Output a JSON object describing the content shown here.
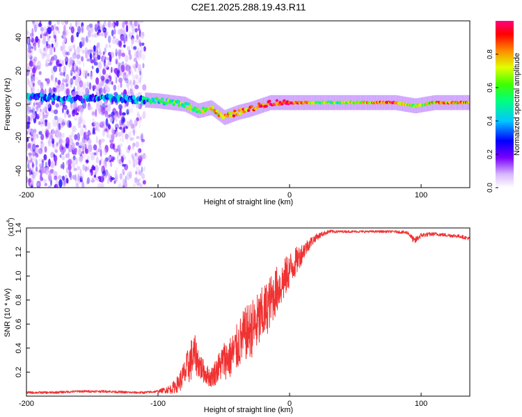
{
  "figure": {
    "title": "C2E1.2025.288.19.43.R11"
  },
  "colors": {
    "line": "#f03232",
    "axis": "#000000",
    "spectrum_base": "#4b00e6"
  },
  "chart_data": [
    {
      "type": "heatmap",
      "name": "spectrogram",
      "xlabel": "Height of straight line (km)",
      "ylabel": "Frequency (Hz)",
      "xlim": [
        -200,
        137
      ],
      "ylim": [
        -50,
        50
      ],
      "xticks": [
        -200,
        -100,
        0,
        100
      ],
      "yticks": [
        -40,
        -20,
        0,
        20,
        40
      ],
      "colorbar": {
        "label": "Normalized spectral amplitude",
        "range": [
          0,
          1
        ],
        "ticks": [
          0.0,
          0.2,
          0.4,
          0.6,
          0.8
        ],
        "tick_labels": [
          "0.0",
          "0.2",
          "0.4",
          "0.6",
          "0.8"
        ]
      },
      "ridge": [
        {
          "x": -185,
          "f": 4,
          "amp": 0.3
        },
        {
          "x": -160,
          "f": 3,
          "amp": 0.3
        },
        {
          "x": -140,
          "f": 4,
          "amp": 0.35
        },
        {
          "x": -120,
          "f": 3,
          "amp": 0.35
        },
        {
          "x": -100,
          "f": 2,
          "amp": 0.45
        },
        {
          "x": -90,
          "f": 1,
          "amp": 0.55
        },
        {
          "x": -80,
          "f": 0,
          "amp": 0.6
        },
        {
          "x": -70,
          "f": -4,
          "amp": 0.6
        },
        {
          "x": -60,
          "f": -2,
          "amp": 0.7
        },
        {
          "x": -50,
          "f": -8,
          "amp": 0.75
        },
        {
          "x": -40,
          "f": -5,
          "amp": 0.85
        },
        {
          "x": -30,
          "f": -3,
          "amp": 0.85
        },
        {
          "x": -15,
          "f": 1,
          "amp": 0.9
        },
        {
          "x": 0,
          "f": 1,
          "amp": 0.92
        },
        {
          "x": 30,
          "f": 1,
          "amp": 0.55
        },
        {
          "x": 60,
          "f": 1,
          "amp": 0.75
        },
        {
          "x": 80,
          "f": 1,
          "amp": 0.9
        },
        {
          "x": 95,
          "f": -1,
          "amp": 0.6
        },
        {
          "x": 110,
          "f": 1,
          "amp": 0.75
        },
        {
          "x": 137,
          "f": 1,
          "amp": 0.8
        }
      ],
      "noise_region": {
        "x_from": -200,
        "x_to": -110,
        "f_from": -50,
        "f_to": 50,
        "density": 0.3
      }
    },
    {
      "type": "line",
      "name": "snr",
      "xlabel": "Height of straight line (km)",
      "ylabel": "SNR (10 * v/v)",
      "scale_label": "(x10",
      "scale_exponent": "4",
      "scale_suffix": ")",
      "xlim": [
        -200,
        137
      ],
      "ylim": [
        0,
        1.4
      ],
      "xticks": [
        -200,
        -100,
        0,
        100
      ],
      "yticks": [
        0.2,
        0.4,
        0.6,
        0.8,
        1.0,
        1.2,
        1.4
      ],
      "ytick_labels": [
        "0.2",
        "0.4",
        "0.6",
        "0.8",
        "1.0",
        "1.2",
        "1.4"
      ],
      "series": [
        {
          "name": "SNR",
          "x": [
            -200,
            -180,
            -160,
            -140,
            -120,
            -110,
            -100,
            -90,
            -85,
            -80,
            -75,
            -72,
            -68,
            -65,
            -60,
            -55,
            -50,
            -45,
            -40,
            -35,
            -30,
            -25,
            -20,
            -15,
            -10,
            -5,
            0,
            5,
            10,
            15,
            20,
            25,
            30,
            40,
            50,
            60,
            70,
            80,
            90,
            95,
            100,
            110,
            120,
            130,
            137
          ],
          "y": [
            0.03,
            0.03,
            0.04,
            0.04,
            0.03,
            0.03,
            0.04,
            0.06,
            0.1,
            0.18,
            0.3,
            0.35,
            0.25,
            0.2,
            0.15,
            0.22,
            0.3,
            0.32,
            0.4,
            0.5,
            0.55,
            0.6,
            0.68,
            0.78,
            0.88,
            0.95,
            1.05,
            1.12,
            1.2,
            1.27,
            1.32,
            1.35,
            1.37,
            1.37,
            1.37,
            1.37,
            1.37,
            1.37,
            1.36,
            1.29,
            1.34,
            1.35,
            1.34,
            1.33,
            1.31
          ],
          "noise": [
            0.01,
            0.01,
            0.01,
            0.01,
            0.01,
            0.01,
            0.01,
            0.04,
            0.07,
            0.12,
            0.18,
            0.16,
            0.12,
            0.09,
            0.08,
            0.12,
            0.16,
            0.18,
            0.2,
            0.22,
            0.24,
            0.25,
            0.24,
            0.22,
            0.2,
            0.18,
            0.15,
            0.12,
            0.08,
            0.05,
            0.03,
            0.02,
            0.015,
            0.01,
            0.01,
            0.01,
            0.01,
            0.01,
            0.015,
            0.03,
            0.02,
            0.015,
            0.015,
            0.015,
            0.015
          ]
        }
      ]
    }
  ]
}
